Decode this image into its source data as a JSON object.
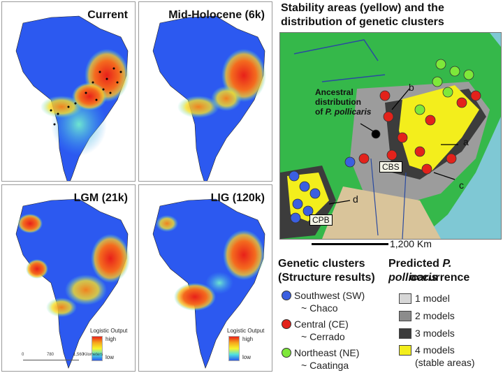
{
  "panels": [
    {
      "title": "Current"
    },
    {
      "title": "Mid-Holocene (6k)"
    },
    {
      "title": "LGM (21k)"
    },
    {
      "title": "LIG (120k)"
    }
  ],
  "logistic_legend": {
    "title": "Logistic Output",
    "high": "high",
    "low": "low"
  },
  "scalebar_small": {
    "ticks": [
      "0",
      "780",
      "1,560"
    ],
    "unit": "Kilometers"
  },
  "right_title_line1": "Stability areas (yellow) and the",
  "right_title_line2": "distribution of genetic clusters",
  "map_labels": {
    "ancestral1": "Ancestral",
    "ancestral2": "distribution",
    "ancestral3_prefix": "of ",
    "ancestral3_species": "P. pollicaris",
    "cbs": "CBS",
    "cpb": "CPB",
    "a": "a",
    "b": "b",
    "c": "c",
    "d": "d"
  },
  "scalebar_big": "1,200 Km",
  "genetic": {
    "title1": "Genetic clusters",
    "title2": "(Structure results)",
    "items": [
      {
        "line1": "Southwest (SW)",
        "line2": "~ Chaco",
        "color": "#3b5fe0"
      },
      {
        "line1": "Central (CE)",
        "line2": "~ Cerrado",
        "color": "#e3221b"
      },
      {
        "line1": "Northeast (NE)",
        "line2": "~ Caatinga",
        "color": "#7ee83a"
      }
    ]
  },
  "predicted": {
    "title_prefix": "Predicted ",
    "title_species": "P. pollicaris",
    "title2": "occurrence",
    "items": [
      {
        "label": "1 model",
        "color": "#d7d7d7"
      },
      {
        "label": "2 models",
        "color": "#8c8c8c"
      },
      {
        "label": "3 models",
        "color": "#3c3c3c"
      },
      {
        "label": "4 models",
        "sub": "(stable areas)",
        "color": "#f3ee1c"
      }
    ]
  }
}
